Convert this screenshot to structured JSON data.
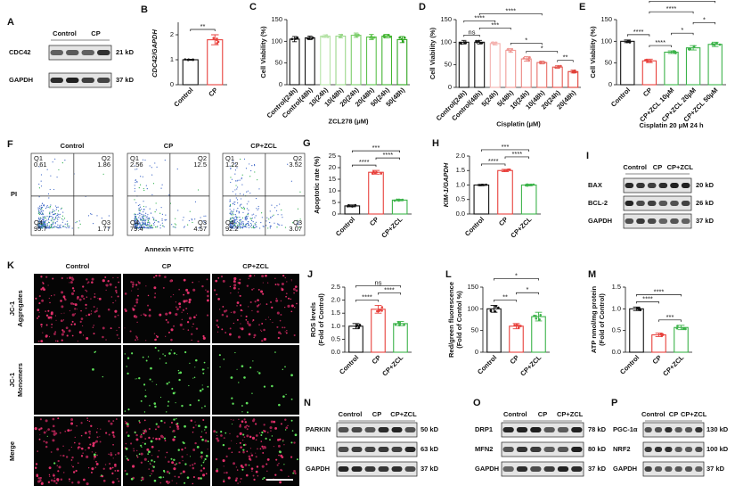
{
  "chart_data": [
    {
      "type": "bar",
      "letter": "B",
      "ylabel": "CDC42/GAPDH",
      "ylabel_style": "italic",
      "categories": [
        "Control",
        "CP"
      ],
      "values": [
        1.0,
        1.8
      ],
      "errors": [
        0.02,
        0.2
      ],
      "colors": [
        "#111111",
        "#e8413c"
      ],
      "ylim": [
        0,
        2.5
      ],
      "yticks": [
        0,
        1,
        2
      ],
      "annotations": [
        {
          "label": "**",
          "between": [
            "Control",
            "CP"
          ]
        }
      ]
    },
    {
      "type": "bar",
      "letter": "C",
      "ylabel": "Cell Viability (%)",
      "xlabel": "ZCL278 (μM)",
      "categories": [
        "Control(24h)",
        "Control(48h)",
        "10(24h)",
        "10(48h)",
        "20(24h)",
        "20(48h)",
        "50(24h)",
        "50(48h)"
      ],
      "values": [
        105,
        108,
        112,
        112,
        114,
        110,
        112,
        104
      ],
      "errors": [
        6,
        4,
        3,
        4,
        5,
        6,
        4,
        7
      ],
      "colors": [
        "#111111",
        "#111111",
        "#b6e3a8",
        "#9ad88a",
        "#7ccd6b",
        "#5fc24e",
        "#44b533",
        "#2ea520"
      ],
      "ylim": [
        0,
        150
      ],
      "yticks": [
        0,
        50,
        100,
        150
      ]
    },
    {
      "type": "bar",
      "letter": "D",
      "ylabel": "Cell Viability (%)",
      "xlabel": "Cisplatin (μM)",
      "categories": [
        "Control(24h)",
        "Control(48h)",
        "5(24h)",
        "5(48h)",
        "10(24h)",
        "10(48h)",
        "20(24h)",
        "20(48h)"
      ],
      "values": [
        100,
        100,
        97,
        82,
        63,
        55,
        45,
        35
      ],
      "errors": [
        4,
        4,
        3,
        4,
        5,
        3,
        3,
        3
      ],
      "colors": [
        "#111111",
        "#111111",
        "#f4b3b0",
        "#f09c98",
        "#ec8580",
        "#e86e68",
        "#e45750",
        "#e04038"
      ],
      "ylim": [
        0,
        150
      ],
      "yticks": [
        0,
        50,
        100,
        150
      ],
      "annotations": [
        {
          "label": "ns",
          "between": [
            "Control(24h)",
            "Control(48h)"
          ]
        },
        {
          "label": "***",
          "between": [
            "Control(48h)",
            "5(48h)"
          ]
        },
        {
          "label": "****",
          "between": [
            "Control(24h)",
            "5(24h)"
          ]
        },
        {
          "label": "****",
          "between": [
            "Control(48h)",
            "10(48h)"
          ]
        },
        {
          "label": "*",
          "between": [
            "5(48h)",
            "10(48h)"
          ]
        },
        {
          "label": "*",
          "between": [
            "10(24h)",
            "20(24h)"
          ]
        },
        {
          "label": "**",
          "between": [
            "20(24h)",
            "20(48h)"
          ]
        }
      ]
    },
    {
      "type": "bar",
      "letter": "E",
      "ylabel": "Cell Viability (%)",
      "xlabel": "Cisplatin  20 μM 24 h",
      "categories": [
        "Control",
        "CP",
        "CP+ZCL 10μM",
        "CP+ZCL 20μM",
        "CP+ZCL 50μM"
      ],
      "values": [
        100,
        55,
        75,
        85,
        93
      ],
      "errors": [
        3,
        4,
        3,
        5,
        5
      ],
      "colors": [
        "#111111",
        "#e8413c",
        "#3cb34a",
        "#3cb34a",
        "#3cb34a"
      ],
      "ylim": [
        0,
        150
      ],
      "yticks": [
        0,
        50,
        100,
        150
      ],
      "annotations": [
        {
          "label": "****",
          "between": [
            "Control",
            "CP"
          ]
        },
        {
          "label": "****",
          "between": [
            "CP",
            "CP+ZCL 10μM"
          ]
        },
        {
          "label": "*",
          "between": [
            "CP+ZCL 10μM",
            "CP+ZCL 20μM"
          ]
        },
        {
          "label": "*",
          "between": [
            "CP+ZCL 20μM",
            "CP+ZCL 50μM"
          ]
        },
        {
          "label": "****",
          "between": [
            "CP",
            "CP+ZCL 20μM"
          ]
        },
        {
          "label": "****",
          "between": [
            "CP",
            "CP+ZCL 50μM"
          ]
        }
      ]
    },
    {
      "type": "bar",
      "letter": "G",
      "ylabel": "Apoptotic rate (%)",
      "categories": [
        "Control",
        "CP",
        "CP+ZCL"
      ],
      "values": [
        3.5,
        18,
        6
      ],
      "errors": [
        0.4,
        0.8,
        0.3
      ],
      "colors": [
        "#111111",
        "#e8413c",
        "#3cb34a"
      ],
      "ylim": [
        0,
        25
      ],
      "yticks": [
        0,
        5,
        10,
        15,
        20,
        25
      ],
      "annotations": [
        {
          "label": "****",
          "between": [
            "Control",
            "CP"
          ]
        },
        {
          "label": "****",
          "between": [
            "CP",
            "CP+ZCL"
          ]
        },
        {
          "label": "***",
          "between": [
            "Control",
            "CP+ZCL"
          ]
        }
      ]
    },
    {
      "type": "bar",
      "letter": "H",
      "ylabel": "KIM-1/GAPDH",
      "ylabel_style": "italic",
      "categories": [
        "Control",
        "CP",
        "CP+ZCL"
      ],
      "values": [
        1.0,
        1.5,
        1.0
      ],
      "errors": [
        0.02,
        0.04,
        0.03
      ],
      "colors": [
        "#111111",
        "#e8413c",
        "#3cb34a"
      ],
      "ylim": [
        0,
        2
      ],
      "yticks": [
        {
          "value": 0,
          "label": "0.0"
        },
        {
          "value": 0.5,
          "label": "0.5"
        },
        {
          "value": 1,
          "label": "1.0"
        },
        {
          "value": 1.5,
          "label": "1.5"
        },
        {
          "value": 2,
          "label": "2.0"
        }
      ],
      "annotations": [
        {
          "label": "****",
          "between": [
            "Control",
            "CP"
          ]
        },
        {
          "label": "****",
          "between": [
            "CP",
            "CP+ZCL"
          ]
        },
        {
          "label": "***",
          "between": [
            "Control",
            "CP+ZCL"
          ]
        }
      ]
    },
    {
      "type": "bar",
      "letter": "J",
      "ylabel": [
        "ROS levels",
        "(Fold of Control)"
      ],
      "categories": [
        "Control",
        "CP",
        "CP+ZCL"
      ],
      "values": [
        1.0,
        1.65,
        1.1
      ],
      "errors": [
        0.1,
        0.15,
        0.08
      ],
      "colors": [
        "#111111",
        "#e8413c",
        "#3cb34a"
      ],
      "ylim": [
        0,
        2.5
      ],
      "yticks": [
        {
          "value": 0,
          "label": "0.0"
        },
        {
          "value": 0.5,
          "label": "0.5"
        },
        {
          "value": 1,
          "label": "1.0"
        },
        {
          "value": 1.5,
          "label": "1.5"
        },
        {
          "value": 2,
          "label": "2.0"
        },
        {
          "value": 2.5,
          "label": "2.5"
        }
      ],
      "annotations": [
        {
          "label": "****",
          "between": [
            "Control",
            "CP"
          ]
        },
        {
          "label": "****",
          "between": [
            "CP",
            "CP+ZCL"
          ]
        },
        {
          "label": "ns",
          "between": [
            "Control",
            "CP+ZCL"
          ]
        }
      ]
    },
    {
      "type": "bar",
      "letter": "L",
      "ylabel": [
        "Red/green fluorescence",
        "(Fold of Contol %)"
      ],
      "categories": [
        "Control",
        "CP",
        "CP+ZCL"
      ],
      "values": [
        100,
        60,
        82
      ],
      "errors": [
        8,
        6,
        10
      ],
      "colors": [
        "#111111",
        "#e8413c",
        "#3cb34a"
      ],
      "ylim": [
        0,
        150
      ],
      "yticks": [
        0,
        50,
        100,
        150
      ],
      "annotations": [
        {
          "label": "**",
          "between": [
            "Control",
            "CP"
          ]
        },
        {
          "label": "*",
          "between": [
            "CP",
            "CP+ZCL"
          ]
        },
        {
          "label": "*",
          "between": [
            "Control",
            "CP+ZCL"
          ]
        }
      ]
    },
    {
      "type": "bar",
      "letter": "M",
      "ylabel": [
        "ATP nmol/mg protein",
        "(Fold of Control)"
      ],
      "categories": [
        "Control",
        "CP",
        "CP+ZCL"
      ],
      "values": [
        1.0,
        0.4,
        0.57
      ],
      "errors": [
        0.04,
        0.04,
        0.05
      ],
      "colors": [
        "#111111",
        "#e8413c",
        "#3cb34a"
      ],
      "ylim": [
        0,
        1.5
      ],
      "yticks": [
        {
          "value": 0,
          "label": "0.0"
        },
        {
          "value": 0.5,
          "label": "0.5"
        },
        {
          "value": 1,
          "label": "1.0"
        },
        {
          "value": 1.5,
          "label": "1.5"
        }
      ],
      "annotations": [
        {
          "label": "****",
          "between": [
            "Control",
            "CP"
          ]
        },
        {
          "label": "***",
          "between": [
            "CP",
            "CP+ZCL"
          ]
        },
        {
          "label": "****",
          "between": [
            "Control",
            "CP+ZCL"
          ]
        }
      ]
    }
  ],
  "panels": {
    "A": {
      "letter": "A",
      "columns": [
        "Control",
        "CP"
      ],
      "rows": [
        {
          "protein": "CDC42",
          "size": "21 kD"
        },
        {
          "protein": "GAPDH",
          "size": "37 kD"
        }
      ]
    },
    "F": {
      "letter": "F",
      "ylabel": "PI",
      "xlabel": "Annexin V-FITC",
      "groups": [
        {
          "title": "Control",
          "quadrants": [
            {
              "name": "Q1",
              "value": 0.61
            },
            {
              "name": "Q2",
              "value": 1.86
            },
            {
              "name": "Q3",
              "value": 1.77
            },
            {
              "name": "Q4",
              "value": 95.7
            }
          ]
        },
        {
          "title": "CP",
          "quadrants": [
            {
              "name": "Q1",
              "value": 2.56
            },
            {
              "name": "Q2",
              "value": 12.5
            },
            {
              "name": "Q3",
              "value": 4.57
            },
            {
              "name": "Q4",
              "value": 79.4
            }
          ]
        },
        {
          "title": "CP+ZCL",
          "quadrants": [
            {
              "name": "Q1",
              "value": 1.22
            },
            {
              "name": "Q2",
              "value": 3.52
            },
            {
              "name": "Q3",
              "value": 3.07
            },
            {
              "name": "Q4",
              "value": 92.2
            }
          ]
        }
      ]
    },
    "I": {
      "letter": "I",
      "columns": [
        "Control",
        "CP",
        "CP+ZCL"
      ],
      "rows": [
        {
          "protein": "BAX",
          "size": "20 kD"
        },
        {
          "protein": "BCL-2",
          "size": "26 kD"
        },
        {
          "protein": "GAPDH",
          "size": "37 kD"
        }
      ]
    },
    "K": {
      "letter": "K",
      "columns": [
        "Control",
        "CP",
        "CP+ZCL"
      ],
      "rows": [
        [
          "JC-1",
          "Aggregates"
        ],
        [
          "JC-1",
          "Monomers"
        ],
        [
          "Merge"
        ]
      ]
    },
    "N": {
      "letter": "N",
      "columns": [
        "Control",
        "CP",
        "CP+ZCL"
      ],
      "rows": [
        {
          "protein": "PARKIN",
          "size": "50 kD"
        },
        {
          "protein": "PINK1",
          "size": "63 kD"
        },
        {
          "protein": "GAPDH",
          "size": "37 kD"
        }
      ]
    },
    "O": {
      "letter": "O",
      "columns": [
        "Control",
        "CP",
        "CP+ZCL"
      ],
      "rows": [
        {
          "protein": "DRP1",
          "size": "78 kD"
        },
        {
          "protein": "MFN2",
          "size": "80 kD"
        },
        {
          "protein": "GAPDH",
          "size": "37 kD"
        }
      ]
    },
    "P": {
      "letter": "P",
      "columns": [
        "Control",
        "CP",
        "CP+ZCL"
      ],
      "rows": [
        {
          "protein": "PGC-1α",
          "size": "130 kD"
        },
        {
          "protein": "NRF2",
          "size": "100 kD"
        },
        {
          "protein": "GAPDH",
          "size": "37 kD"
        }
      ]
    }
  }
}
